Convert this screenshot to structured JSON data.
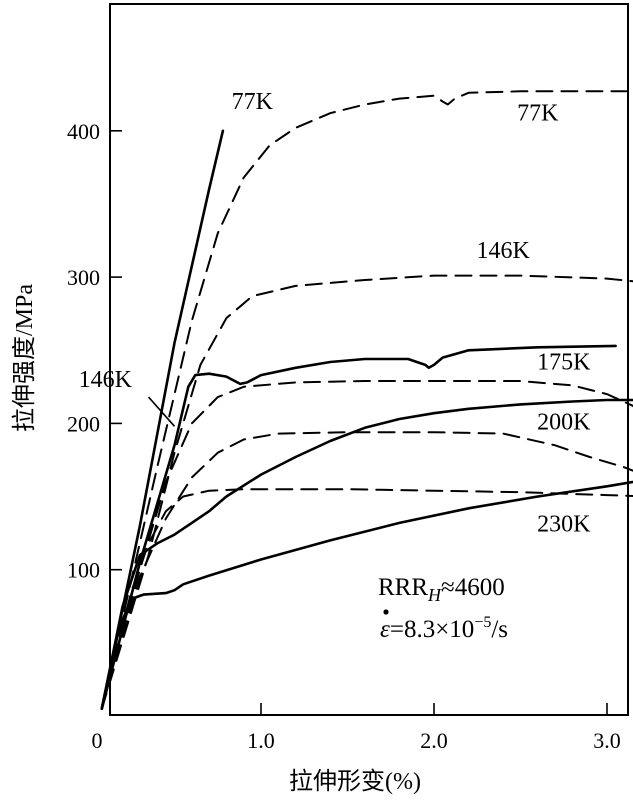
{
  "chart_data": {
    "type": "line",
    "title": "",
    "xlabel": "拉伸形变(%)",
    "ylabel": "拉伸强度/MPa",
    "xlim": [
      0,
      3.3
    ],
    "ylim": [
      0,
      500
    ],
    "x_ticks": [
      {
        "value": 0,
        "label": "0"
      },
      {
        "value": 1.0,
        "label": "1.0"
      },
      {
        "value": 2.0,
        "label": "2.0"
      },
      {
        "value": 3.0,
        "label": "3.0"
      }
    ],
    "y_ticks": [
      {
        "value": 100,
        "label": "100"
      },
      {
        "value": 200,
        "label": "200"
      },
      {
        "value": 300,
        "label": "300"
      },
      {
        "value": 400,
        "label": "400"
      }
    ],
    "grid": false,
    "series": [
      {
        "label": "77K",
        "style": "solid",
        "points": [
          [
            0.08,
            5
          ],
          [
            0.3,
            130
          ],
          [
            0.5,
            255
          ],
          [
            0.7,
            360
          ],
          [
            0.78,
            400
          ]
        ]
      },
      {
        "label": "146K",
        "style": "solid",
        "points": [
          [
            0.08,
            5
          ],
          [
            0.3,
            105
          ],
          [
            0.5,
            185
          ],
          [
            0.58,
            225
          ],
          [
            0.62,
            233
          ],
          [
            0.7,
            234
          ],
          [
            0.8,
            232
          ],
          [
            0.88,
            227
          ],
          [
            0.92,
            228
          ],
          [
            1.0,
            233
          ],
          [
            1.2,
            238
          ],
          [
            1.4,
            242
          ],
          [
            1.6,
            244
          ],
          [
            1.85,
            244
          ],
          [
            1.95,
            240
          ],
          [
            1.97,
            238
          ],
          [
            2.0,
            240
          ],
          [
            2.05,
            245
          ],
          [
            2.2,
            250
          ],
          [
            2.6,
            252
          ],
          [
            3.05,
            253
          ]
        ]
      },
      {
        "label": "200K",
        "style": "solid",
        "points": [
          [
            0.08,
            5
          ],
          [
            0.2,
            75
          ],
          [
            0.3,
            110
          ],
          [
            0.4,
            118
          ],
          [
            0.5,
            124
          ],
          [
            0.6,
            132
          ],
          [
            0.7,
            140
          ],
          [
            0.8,
            150
          ],
          [
            1.0,
            165
          ],
          [
            1.2,
            177
          ],
          [
            1.4,
            188
          ],
          [
            1.6,
            197
          ],
          [
            1.8,
            203
          ],
          [
            2.0,
            207
          ],
          [
            2.2,
            210
          ],
          [
            2.5,
            213
          ],
          [
            2.8,
            215
          ],
          [
            3.0,
            216
          ],
          [
            3.25,
            216
          ]
        ]
      },
      {
        "label": "230K",
        "style": "solid",
        "points": [
          [
            0.08,
            5
          ],
          [
            0.18,
            60
          ],
          [
            0.25,
            80
          ],
          [
            0.32,
            83
          ],
          [
            0.45,
            84
          ],
          [
            0.5,
            86
          ],
          [
            0.55,
            90
          ],
          [
            0.7,
            96
          ],
          [
            1.0,
            107
          ],
          [
            1.4,
            120
          ],
          [
            1.8,
            132
          ],
          [
            2.2,
            142
          ],
          [
            2.6,
            150
          ],
          [
            3.0,
            157
          ],
          [
            3.25,
            162
          ]
        ]
      },
      {
        "label": "77K",
        "style": "dashed",
        "points": [
          [
            0.08,
            5
          ],
          [
            0.4,
            170
          ],
          [
            0.6,
            270
          ],
          [
            0.75,
            330
          ],
          [
            0.9,
            368
          ],
          [
            1.05,
            390
          ],
          [
            1.2,
            402
          ],
          [
            1.4,
            412
          ],
          [
            1.6,
            418
          ],
          [
            1.8,
            422
          ],
          [
            2.0,
            424
          ],
          [
            2.05,
            420
          ],
          [
            2.08,
            418
          ],
          [
            2.12,
            422
          ],
          [
            2.2,
            426
          ],
          [
            2.5,
            427
          ],
          [
            3.0,
            427
          ],
          [
            3.25,
            427
          ]
        ]
      },
      {
        "label": "146K",
        "style": "dashed",
        "points": [
          [
            0.08,
            5
          ],
          [
            0.35,
            110
          ],
          [
            0.5,
            180
          ],
          [
            0.65,
            240
          ],
          [
            0.8,
            272
          ],
          [
            0.95,
            287
          ],
          [
            1.2,
            294
          ],
          [
            1.6,
            298
          ],
          [
            2.0,
            301
          ],
          [
            2.5,
            301
          ],
          [
            3.0,
            299
          ],
          [
            3.25,
            296
          ]
        ]
      },
      {
        "label": "175K",
        "style": "dashed",
        "points": [
          [
            0.08,
            5
          ],
          [
            0.3,
            100
          ],
          [
            0.45,
            160
          ],
          [
            0.6,
            200
          ],
          [
            0.75,
            218
          ],
          [
            0.9,
            225
          ],
          [
            1.2,
            228
          ],
          [
            1.6,
            229
          ],
          [
            2.0,
            229
          ],
          [
            2.5,
            229
          ],
          [
            2.8,
            226
          ],
          [
            3.0,
            220
          ],
          [
            3.15,
            212
          ],
          [
            3.25,
            200
          ]
        ]
      },
      {
        "label": "200K",
        "style": "dashed",
        "points": [
          [
            0.08,
            5
          ],
          [
            0.3,
            95
          ],
          [
            0.45,
            135
          ],
          [
            0.6,
            163
          ],
          [
            0.75,
            180
          ],
          [
            0.9,
            189
          ],
          [
            1.1,
            193
          ],
          [
            1.5,
            194
          ],
          [
            2.0,
            194
          ],
          [
            2.4,
            193
          ],
          [
            2.7,
            185
          ],
          [
            2.9,
            177
          ],
          [
            3.1,
            170
          ],
          [
            3.25,
            163
          ]
        ]
      },
      {
        "label": "230K",
        "style": "dashed",
        "points": [
          [
            0.08,
            5
          ],
          [
            0.25,
            85
          ],
          [
            0.35,
            118
          ],
          [
            0.45,
            140
          ],
          [
            0.55,
            150
          ],
          [
            0.7,
            154
          ],
          [
            0.9,
            155
          ],
          [
            1.5,
            155
          ],
          [
            2.0,
            154
          ],
          [
            2.5,
            153
          ],
          [
            3.0,
            151
          ],
          [
            3.25,
            150
          ]
        ]
      }
    ],
    "labels": [
      {
        "text": "77K",
        "x": 0.95,
        "y": 415
      },
      {
        "text": "77K",
        "x": 2.6,
        "y": 407
      },
      {
        "text": "146K",
        "x": 2.4,
        "y": 313
      },
      {
        "text": "146K",
        "x": 0.1,
        "y": 225
      },
      {
        "text": "175K",
        "x": 2.75,
        "y": 237
      },
      {
        "text": "200K",
        "x": 2.75,
        "y": 196
      },
      {
        "text": "230K",
        "x": 2.75,
        "y": 126
      }
    ],
    "annotations": {
      "rrr_prefix": "RRR",
      "rrr_sub": "H",
      "rrr_value": "≈4600",
      "rate_symbol": "ε",
      "rate_eq": "=8.3×10",
      "rate_exp": "−5",
      "rate_unit": "/s"
    }
  }
}
